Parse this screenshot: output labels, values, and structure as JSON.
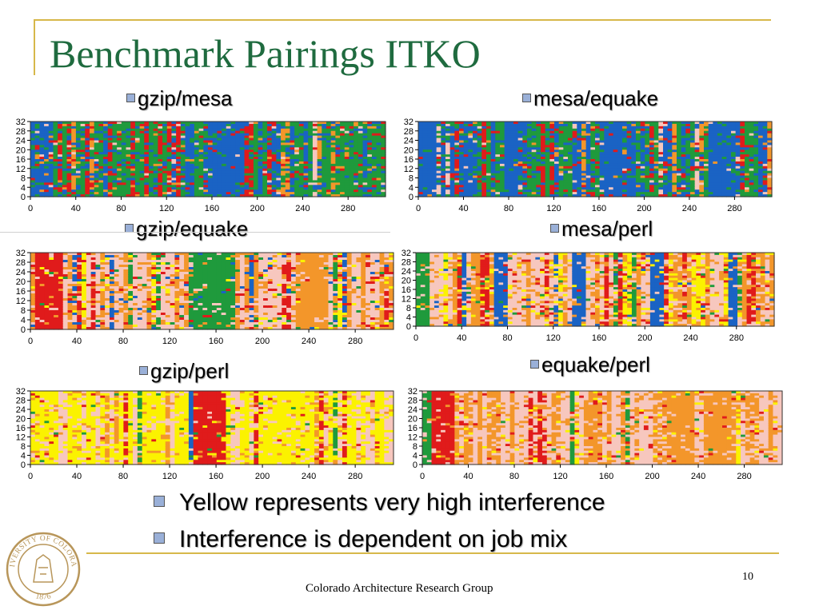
{
  "slide": {
    "title": "Benchmark Pairings ITKO",
    "bullets": [
      "Yellow represents very high interference",
      "Interference is dependent on job mix"
    ],
    "footer": "Colorado Architecture Research Group",
    "page_number": "10"
  },
  "colors": {
    "title": "#1f6b3f",
    "frame": "#d7b84a",
    "bullet_fill": "#9ab0d8",
    "blue": "#1a63c4",
    "green": "#1f9a3c",
    "red": "#e01b1b",
    "orange": "#f3962a",
    "pink": "#f7c7be",
    "yellow": "#fbf200"
  },
  "seal": {
    "text": "UNIVERSITY OF COLORADO",
    "year": "1876"
  },
  "chart_data": [
    {
      "type": "heatmap",
      "title": "gzip/mesa",
      "x_ticks": [
        0,
        40,
        80,
        120,
        160,
        200,
        240,
        280
      ],
      "y_ticks": [
        0,
        4,
        8,
        12,
        16,
        20,
        24,
        28,
        32
      ],
      "xlim": [
        0,
        313
      ],
      "ylim": [
        0,
        32
      ],
      "color_mix": {
        "blue": 0.3,
        "green": 0.38,
        "red": 0.16,
        "orange": 0.1,
        "pink": 0.06,
        "yellow": 0.0
      },
      "bands": [
        {
          "x": [
            155,
            190
          ],
          "color": "blue"
        }
      ]
    },
    {
      "type": "heatmap",
      "title": "mesa/equake",
      "x_ticks": [
        0,
        40,
        80,
        120,
        160,
        200,
        240,
        280
      ],
      "y_ticks": [
        0,
        4,
        8,
        12,
        16,
        20,
        24,
        28,
        32
      ],
      "xlim": [
        0,
        313
      ],
      "ylim": [
        0,
        32
      ],
      "color_mix": {
        "blue": 0.35,
        "green": 0.35,
        "red": 0.18,
        "orange": 0.07,
        "pink": 0.05,
        "yellow": 0.0
      },
      "bands": [
        {
          "x": [
            0,
            18
          ],
          "color": "blue"
        },
        {
          "x": [
            75,
            87
          ],
          "color": "blue"
        },
        {
          "x": [
            165,
            180
          ],
          "color": "blue"
        },
        {
          "x": [
            257,
            272
          ],
          "color": "blue"
        }
      ]
    },
    {
      "type": "heatmap",
      "title": "gzip/equake",
      "x_ticks": [
        0,
        40,
        80,
        120,
        160,
        200,
        240,
        280
      ],
      "y_ticks": [
        0,
        4,
        8,
        12,
        16,
        20,
        24,
        28,
        32
      ],
      "xlim": [
        0,
        313
      ],
      "ylim": [
        0,
        32
      ],
      "color_mix": {
        "blue": 0.05,
        "green": 0.06,
        "red": 0.12,
        "orange": 0.3,
        "pink": 0.4,
        "yellow": 0.07
      },
      "bands": [
        {
          "x": [
            5,
            30
          ],
          "color": "red"
        },
        {
          "x": [
            140,
            178
          ],
          "color": "green"
        },
        {
          "x": [
            232,
            255
          ],
          "color": "orange"
        }
      ]
    },
    {
      "type": "heatmap",
      "title": "mesa/perl",
      "x_ticks": [
        0,
        40,
        80,
        120,
        160,
        200,
        240,
        280
      ],
      "y_ticks": [
        0,
        4,
        8,
        12,
        16,
        20,
        24,
        28,
        32
      ],
      "xlim": [
        0,
        313
      ],
      "ylim": [
        0,
        32
      ],
      "color_mix": {
        "blue": 0.04,
        "green": 0.05,
        "red": 0.1,
        "orange": 0.33,
        "pink": 0.33,
        "yellow": 0.15
      },
      "bands": [
        {
          "x": [
            0,
            12
          ],
          "color": "green"
        },
        {
          "x": [
            70,
            80
          ],
          "color": "blue"
        },
        {
          "x": [
            138,
            150
          ],
          "color": "blue"
        },
        {
          "x": [
            205,
            215
          ],
          "color": "blue"
        },
        {
          "x": [
            272,
            282
          ],
          "color": "blue"
        }
      ]
    },
    {
      "type": "heatmap",
      "title": "gzip/perl",
      "x_ticks": [
        0,
        40,
        80,
        120,
        160,
        200,
        240,
        280
      ],
      "y_ticks": [
        0,
        4,
        8,
        12,
        16,
        20,
        24,
        28,
        32
      ],
      "xlim": [
        0,
        313
      ],
      "ylim": [
        0,
        32
      ],
      "color_mix": {
        "blue": 0.0,
        "green": 0.03,
        "red": 0.03,
        "orange": 0.14,
        "pink": 0.25,
        "yellow": 0.55
      },
      "bands": [
        {
          "x": [
            135,
            140
          ],
          "color": "blue"
        },
        {
          "x": [
            140,
            170
          ],
          "color": "red"
        }
      ]
    },
    {
      "type": "heatmap",
      "title": "equake/perl",
      "x_ticks": [
        0,
        40,
        80,
        120,
        160,
        200,
        240,
        280
      ],
      "y_ticks": [
        0,
        4,
        8,
        12,
        16,
        20,
        24,
        28,
        32
      ],
      "xlim": [
        0,
        313
      ],
      "ylim": [
        0,
        32
      ],
      "color_mix": {
        "blue": 0.0,
        "green": 0.02,
        "red": 0.08,
        "orange": 0.28,
        "pink": 0.55,
        "yellow": 0.07
      },
      "bands": [
        {
          "x": [
            0,
            8
          ],
          "color": "green"
        },
        {
          "x": [
            8,
            30
          ],
          "color": "red"
        },
        {
          "x": [
            213,
            235
          ],
          "color": "orange"
        },
        {
          "x": [
            245,
            270
          ],
          "color": "orange"
        }
      ]
    }
  ]
}
